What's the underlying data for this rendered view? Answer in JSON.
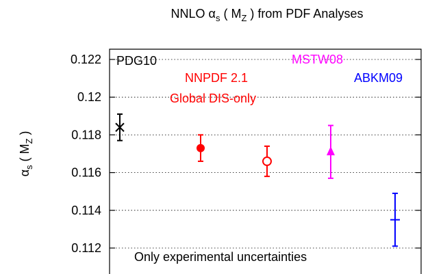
{
  "chart_data": {
    "type": "scatter",
    "title": {
      "prefix": "NNLO α",
      "prefix_sub": "s",
      "middle": " ( M",
      "middle_sub": "Z",
      "suffix": " ) from PDF Analyses"
    },
    "ylabel": {
      "symbol": "α",
      "symbol_sub": "s",
      "mid": " ( M",
      "mid_sub": "Z",
      "end": " )"
    },
    "xlabel": "",
    "x_categories": [
      "PDG10",
      "NNPDF 2.1 Global",
      "NNPDF 2.1 DIS-only",
      "MSTW08",
      "ABKM09"
    ],
    "ylim": [
      0.1105,
      0.1235
    ],
    "yticks": [
      "0.112",
      "0.114",
      "0.116",
      "0.118",
      "0.12",
      "0.122"
    ],
    "grid": "dotted horizontal",
    "points": [
      {
        "name": "PDG10",
        "y": 0.1184,
        "err_low": 0.1177,
        "err_high": 0.1191,
        "marker": "x",
        "color": "#000000"
      },
      {
        "name": "NNPDF 2.1 Global",
        "y": 0.1173,
        "err_low": 0.1166,
        "err_high": 0.118,
        "marker": "filled-circle",
        "color": "#ff0000"
      },
      {
        "name": "NNPDF 2.1 DIS-only",
        "y": 0.1166,
        "err_low": 0.1158,
        "err_high": 0.1174,
        "marker": "open-circle",
        "color": "#ff0000"
      },
      {
        "name": "MSTW08",
        "y": 0.1171,
        "err_low": 0.1157,
        "err_high": 0.1185,
        "marker": "filled-triangle",
        "color": "#ff00ff"
      },
      {
        "name": "ABKM09",
        "y": 0.1135,
        "err_low": 0.1121,
        "err_high": 0.1149,
        "marker": "plus",
        "color": "#0000ff"
      }
    ],
    "labels": {
      "pdg": "PDG10",
      "nnpdf": "NNPDF 2.1",
      "nnpdf_sub": "Global  DIS-only",
      "mstw": "MSTW08",
      "abkm": "ABKM09",
      "note": "Only experimental uncertainties"
    }
  }
}
